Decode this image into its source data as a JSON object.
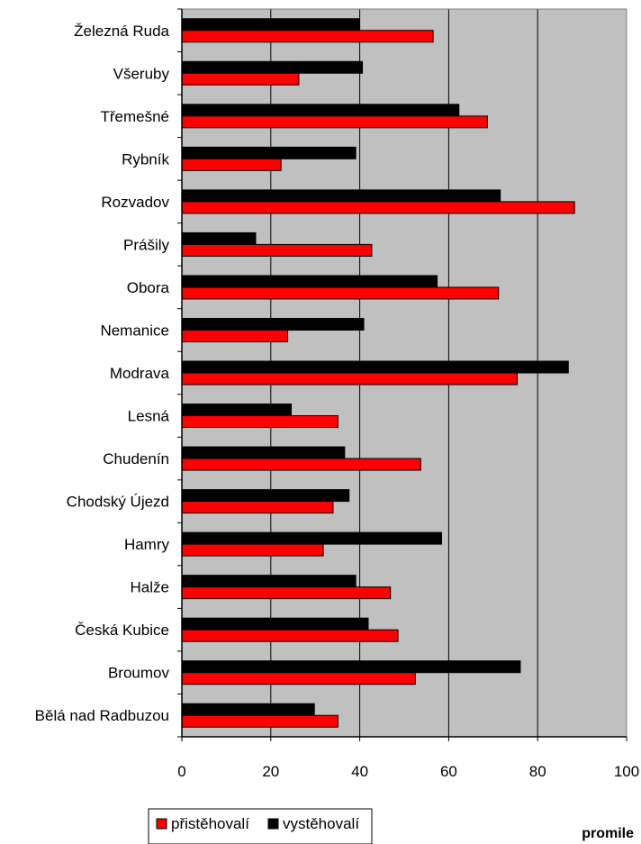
{
  "chart_data": {
    "type": "bar",
    "orientation": "horizontal",
    "categories": [
      "Železná Ruda",
      "Všeruby",
      "Třemešné",
      "Rybník",
      "Rozvadov",
      "Prášily",
      "Obora",
      "Nemanice",
      "Modrava",
      "Lesná",
      "Chudenín",
      "Chodský Újezd",
      "Hamry",
      "Halže",
      "Česká Kubice",
      "Broumov",
      "Bělá nad Radbuzou"
    ],
    "series": [
      {
        "name": "přistěhovalí",
        "color": "#ff0000",
        "values": [
          56.5,
          26.3,
          68.7,
          22.3,
          88.3,
          42.7,
          71.2,
          23.8,
          75.4,
          35.1,
          53.7,
          34.0,
          31.8,
          46.9,
          48.6,
          52.5,
          35.1
        ]
      },
      {
        "name": "vystěhovalí",
        "color": "#000000",
        "values": [
          39.9,
          40.6,
          62.3,
          39.1,
          71.6,
          16.6,
          57.4,
          40.9,
          86.9,
          24.6,
          36.6,
          37.6,
          58.4,
          39.1,
          41.9,
          76.1,
          29.8
        ]
      }
    ],
    "xlim": [
      0,
      100
    ],
    "xticks": [
      0,
      20,
      40,
      60,
      80,
      100
    ],
    "xlabel": "promile",
    "grid": true,
    "plot_background": "#c0c0c0",
    "legend_position": "bottom-left"
  }
}
